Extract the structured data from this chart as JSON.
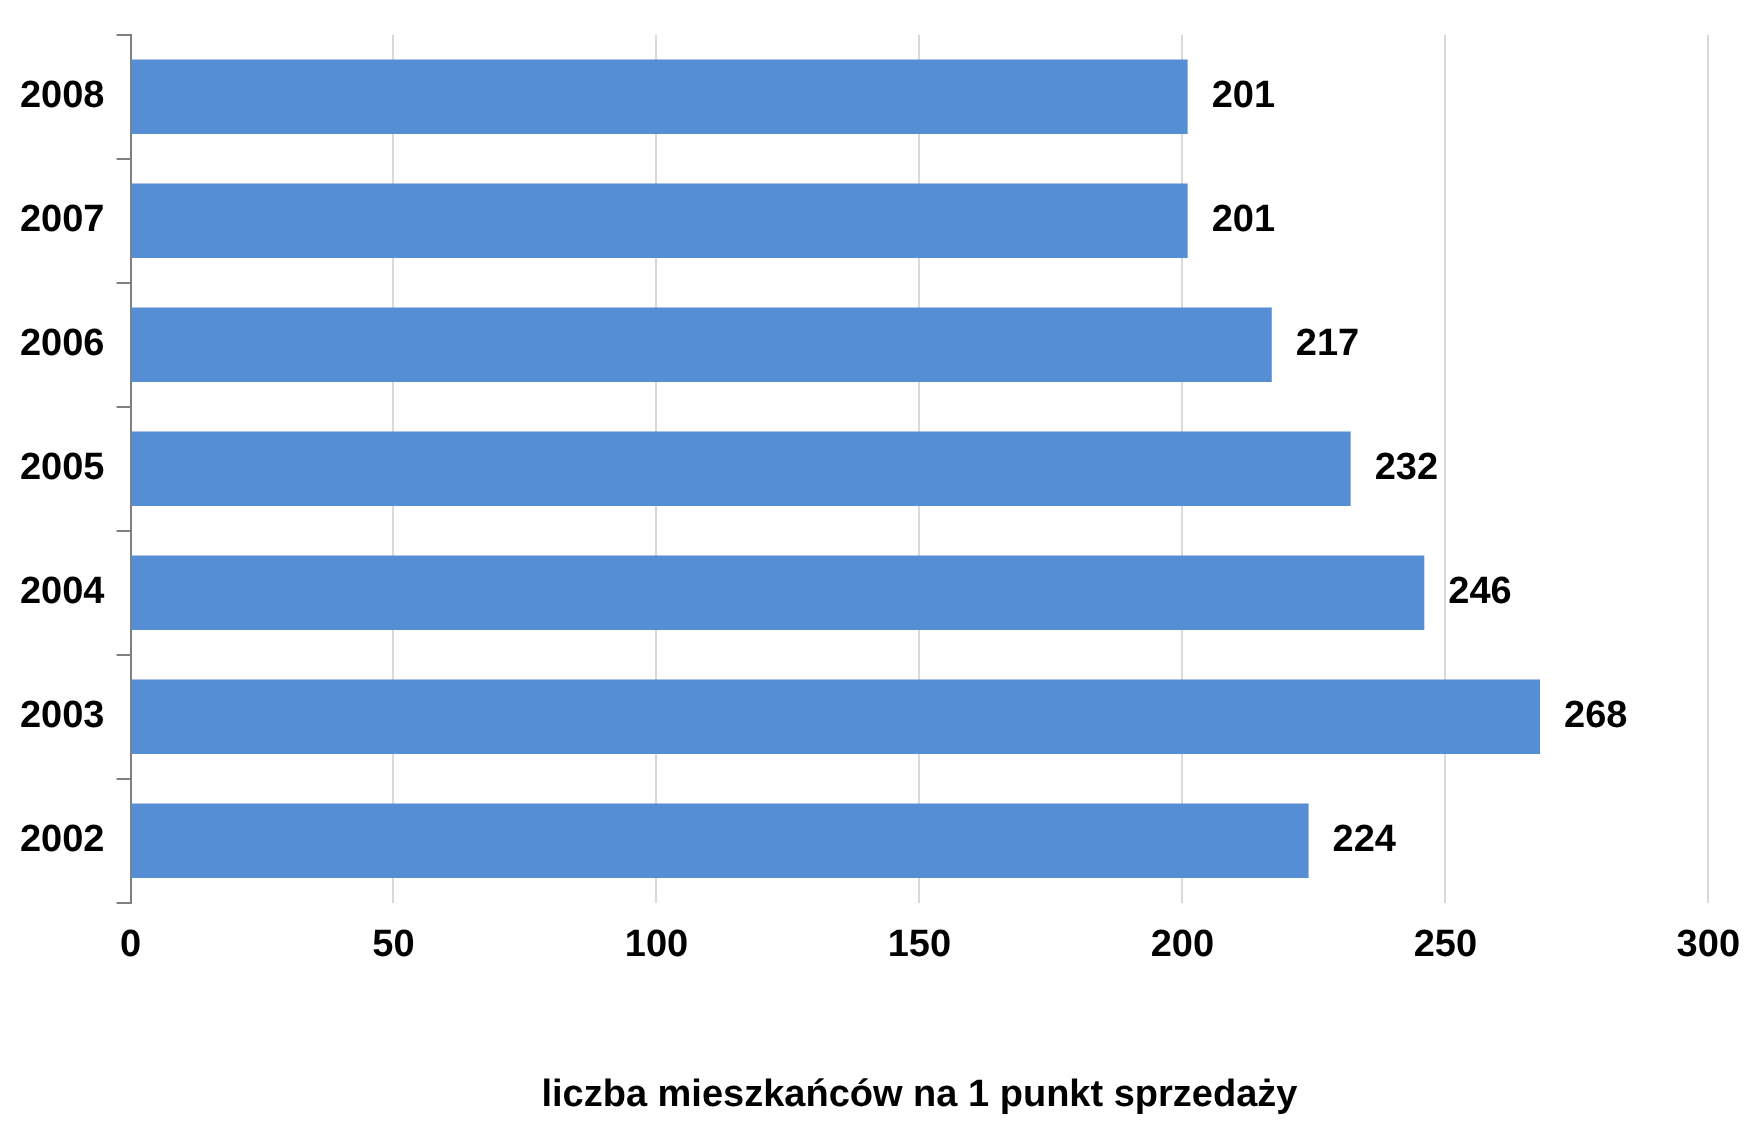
{
  "chart_data": {
    "type": "bar",
    "orientation": "horizontal",
    "xlabel": "liczba mieszkańców na 1 punkt sprzedaży",
    "categories": [
      "2008",
      "2007",
      "2006",
      "2005",
      "2004",
      "2003",
      "2002"
    ],
    "values": [
      201,
      201,
      217,
      232,
      246,
      268,
      224
    ],
    "color": "#558ed5",
    "xlim": [
      0,
      300
    ],
    "xticks": [
      0,
      50,
      100,
      150,
      200,
      250,
      300
    ],
    "grid": "x",
    "data_labels": true,
    "legend": false
  }
}
